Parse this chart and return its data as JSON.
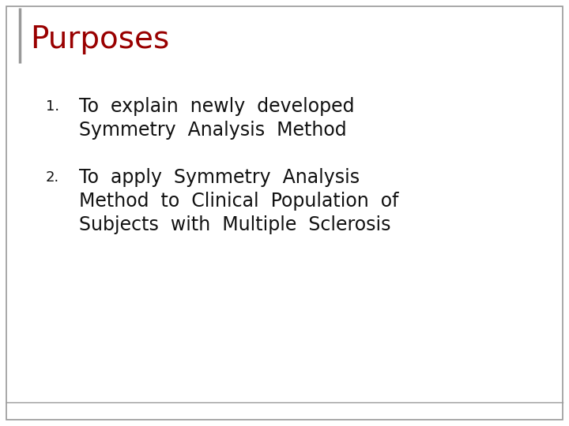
{
  "title": "Purposes",
  "title_color": "#990000",
  "title_fontsize": 28,
  "background_color": "#FFFFFF",
  "border_color": "#999999",
  "left_bar_color": "#999999",
  "item1_num": "1.",
  "item1_line1": "To  explain  newly  developed",
  "item1_line2": "Symmetry  Analysis  Method",
  "item2_num": "2.",
  "item2_line1": "To  apply  Symmetry  Analysis",
  "item2_line2": "Method  to  Clinical  Population  of",
  "item2_line3": "Subjects  with  Multiple  Sclerosis",
  "body_fontsize": 17,
  "body_color": "#111111",
  "num_fontsize": 13,
  "num_color": "#111111",
  "font_family": "DejaVu Sans"
}
